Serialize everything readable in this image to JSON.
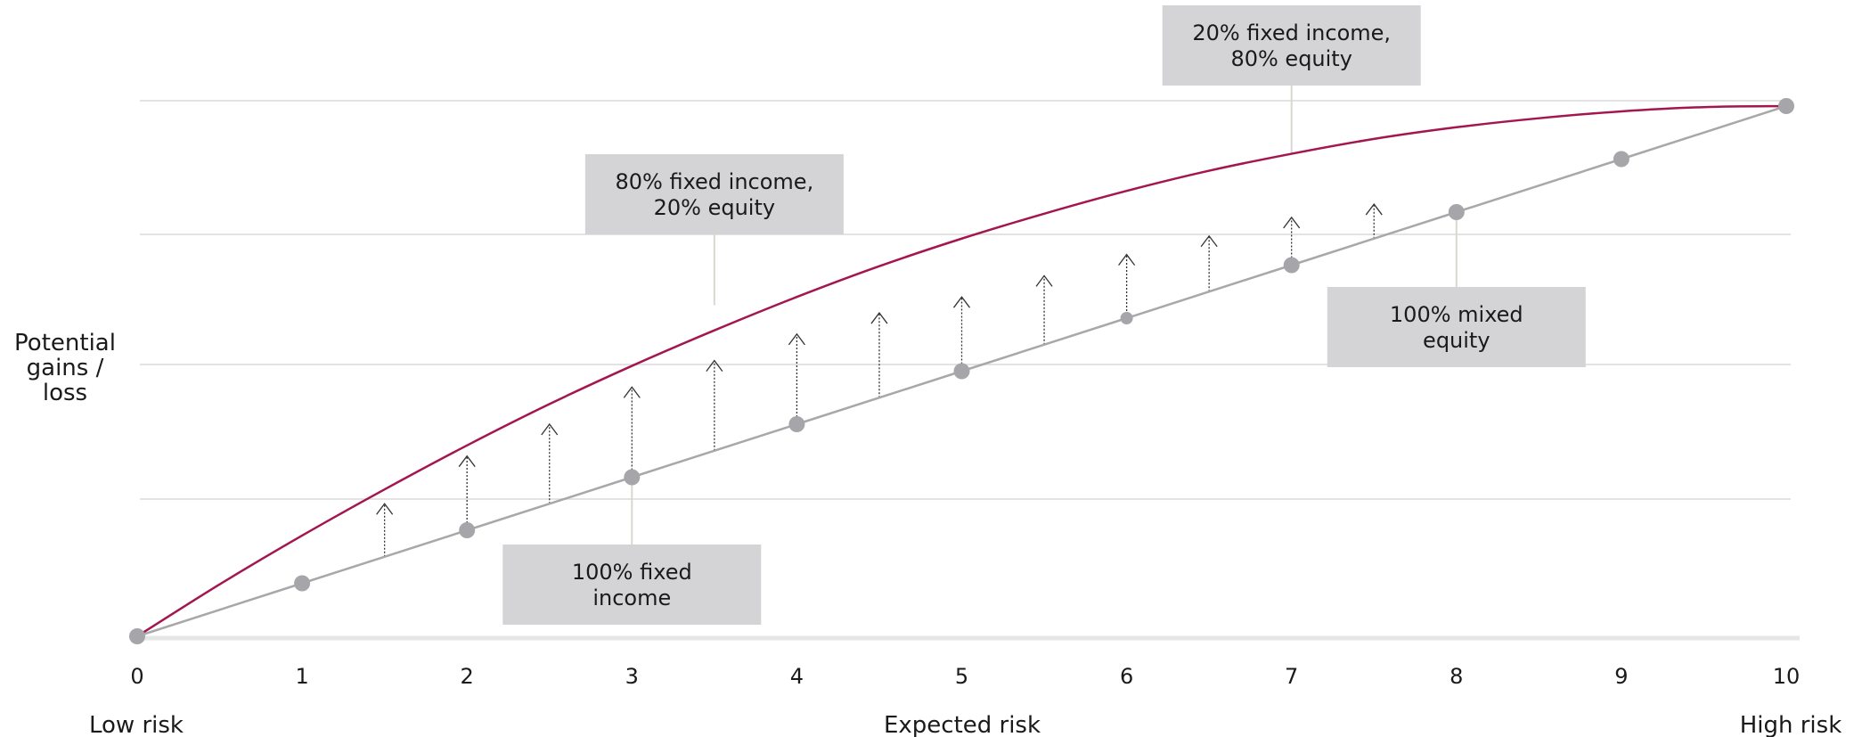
{
  "chart_data": {
    "type": "line",
    "title": "",
    "ylabel": [
      "Potential",
      "gains /",
      "loss"
    ],
    "xlabel": "Expected risk",
    "x_low_label": "Low risk",
    "x_high_label": "High risk",
    "xlim": [
      0,
      10
    ],
    "ylim": [
      0,
      10
    ],
    "x_ticks": [
      0,
      1,
      2,
      3,
      4,
      5,
      6,
      7,
      8,
      9,
      10
    ],
    "grid": true,
    "colors": {
      "curve": "#a3164f",
      "line": "#a8a8ab",
      "dot": "#a6a6aa",
      "grid": "#e3e3e3",
      "callout": "#d4d4d6",
      "leader": "#d8d8d0"
    },
    "series": [
      {
        "role": "diversified-frontier",
        "x": [
          0,
          0.5,
          1,
          1.5,
          2,
          2.5,
          3,
          3.5,
          4,
          4.5,
          5,
          5.5,
          6,
          6.5,
          7,
          7.5,
          8,
          8.5,
          9,
          9.5,
          10
        ],
        "values": [
          0,
          0.98,
          1.9,
          2.77,
          3.6,
          4.38,
          5.1,
          5.77,
          6.4,
          6.98,
          7.5,
          7.97,
          8.4,
          8.78,
          9.1,
          9.38,
          9.6,
          9.77,
          9.9,
          9.98,
          10
        ]
      },
      {
        "role": "linear-mix",
        "x": [
          0,
          1,
          2,
          3,
          4,
          5,
          6,
          7,
          8,
          9,
          10
        ],
        "values": [
          0,
          1,
          2,
          3,
          4,
          5,
          6,
          7,
          8,
          9,
          10
        ],
        "markers": [
          0,
          1,
          2,
          3,
          4,
          5,
          6,
          7,
          8,
          9,
          10
        ]
      }
    ],
    "arrows": {
      "x": [
        1.5,
        2,
        2.5,
        3,
        3.5,
        4,
        4.5,
        5,
        5.5,
        6,
        6.5,
        7,
        7.5
      ],
      "from": [
        1.5,
        2,
        2.5,
        3,
        3.5,
        4,
        4.5,
        5,
        5.5,
        6,
        6.5,
        7,
        7.5
      ],
      "to": [
        2.5,
        3.4,
        4.0,
        4.7,
        5.2,
        5.7,
        6.1,
        6.4,
        6.8,
        7.2,
        7.55,
        7.9,
        8.15
      ]
    },
    "annotations": [
      {
        "id": "fixed-income",
        "lines": [
          "100% fixed",
          "income"
        ],
        "x": 3,
        "y": 3,
        "leader_to": "line",
        "side": "below"
      },
      {
        "id": "80-20",
        "lines": [
          "80% fixed income,",
          "20% equity"
        ],
        "x": 3.5,
        "y": 6.75,
        "leader_to": "curve",
        "side": "above"
      },
      {
        "id": "20-80",
        "lines": [
          "20% fixed income,",
          "80% equity"
        ],
        "x": 7,
        "y": 9.6,
        "leader_to": "curve",
        "side": "above"
      },
      {
        "id": "mixed-equity",
        "lines": [
          "100% mixed",
          "equity"
        ],
        "x": 8,
        "y": 8,
        "leader_to": "line",
        "side": "below"
      }
    ]
  }
}
